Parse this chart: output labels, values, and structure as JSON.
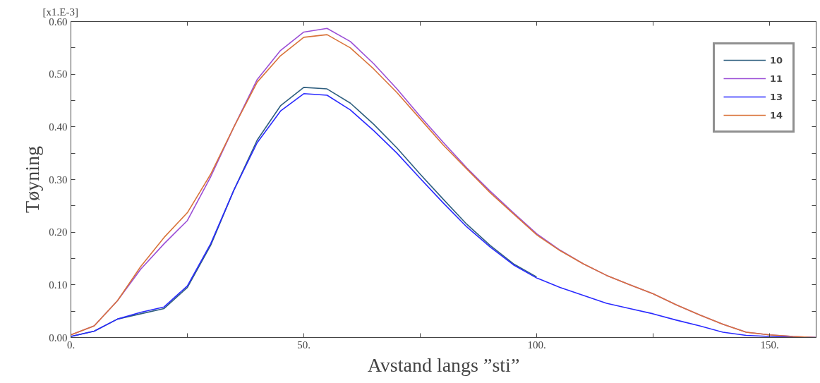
{
  "chart_data": {
    "type": "line",
    "xlabel": "Avstand langs ”sti”",
    "ylabel": "Tøyning",
    "annotations": [
      "[x1.E-3]"
    ],
    "x": [
      0,
      5,
      10,
      15,
      20,
      25,
      30,
      35,
      40,
      45,
      50,
      55,
      60,
      65,
      70,
      75,
      80,
      85,
      90,
      95,
      100,
      105,
      110,
      115,
      120,
      125,
      130,
      135,
      140,
      145,
      150,
      155,
      160
    ],
    "series": [
      {
        "name": "10",
        "color": "#2f5f7f",
        "values": [
          0.002,
          0.012,
          0.035,
          0.045,
          0.055,
          0.095,
          0.175,
          0.28,
          0.375,
          0.44,
          0.475,
          0.472,
          0.445,
          0.405,
          0.36,
          0.31,
          0.262,
          0.215,
          0.175,
          0.14,
          0.115,
          null,
          null,
          null,
          null,
          null,
          null,
          null,
          null,
          null,
          null,
          null,
          null
        ]
      },
      {
        "name": "11",
        "color": "#9b4fd6",
        "values": [
          0.005,
          0.022,
          0.07,
          0.13,
          0.178,
          0.222,
          0.305,
          0.4,
          0.49,
          0.545,
          0.58,
          0.587,
          0.562,
          0.52,
          0.472,
          0.42,
          0.37,
          0.322,
          0.278,
          0.237,
          0.197,
          0.166,
          0.14,
          0.118,
          0.1,
          0.083,
          0.062,
          0.043,
          0.025,
          0.01,
          0.005,
          0.002,
          0
        ]
      },
      {
        "name": "13",
        "color": "#2a2aff",
        "values": [
          0.002,
          0.012,
          0.035,
          0.048,
          0.058,
          0.098,
          0.178,
          0.28,
          0.37,
          0.43,
          0.463,
          0.46,
          0.432,
          0.393,
          0.35,
          0.302,
          0.255,
          0.21,
          0.172,
          0.138,
          0.113,
          0.095,
          0.08,
          0.065,
          0.055,
          0.045,
          0.033,
          0.022,
          0.01,
          0.004,
          0.002,
          0.001,
          0
        ]
      },
      {
        "name": "14",
        "color": "#d9733a",
        "values": [
          0.005,
          0.022,
          0.07,
          0.135,
          0.19,
          0.237,
          0.31,
          0.4,
          0.485,
          0.535,
          0.57,
          0.575,
          0.55,
          0.51,
          0.465,
          0.415,
          0.365,
          0.32,
          0.275,
          0.235,
          0.195,
          0.165,
          0.14,
          0.118,
          0.1,
          0.083,
          0.062,
          0.043,
          0.025,
          0.01,
          0.005,
          0.002,
          0
        ]
      }
    ],
    "xlim": [
      0,
      160
    ],
    "ylim": [
      0,
      0.6
    ],
    "xticks": [
      {
        "value": 0,
        "label": "0."
      },
      {
        "value": 25,
        "label": null
      },
      {
        "value": 50,
        "label": "50."
      },
      {
        "value": 75,
        "label": null
      },
      {
        "value": 100,
        "label": "100."
      },
      {
        "value": 125,
        "label": null
      },
      {
        "value": 150,
        "label": "150."
      }
    ],
    "yticks": [
      {
        "value": 0,
        "label": "0.00"
      },
      {
        "value": 0.05,
        "label": null
      },
      {
        "value": 0.1,
        "label": "0.10"
      },
      {
        "value": 0.15,
        "label": null
      },
      {
        "value": 0.2,
        "label": "0.20"
      },
      {
        "value": 0.25,
        "label": null
      },
      {
        "value": 0.3,
        "label": "0.30"
      },
      {
        "value": 0.35,
        "label": null
      },
      {
        "value": 0.4,
        "label": "0.40"
      },
      {
        "value": 0.45,
        "label": null
      },
      {
        "value": 0.5,
        "label": "0.50"
      },
      {
        "value": 0.55,
        "label": null
      },
      {
        "value": 0.6,
        "label": "0.60"
      }
    ],
    "grid": false,
    "legend": "top right",
    "line_style": "solid",
    "marker": "none"
  }
}
